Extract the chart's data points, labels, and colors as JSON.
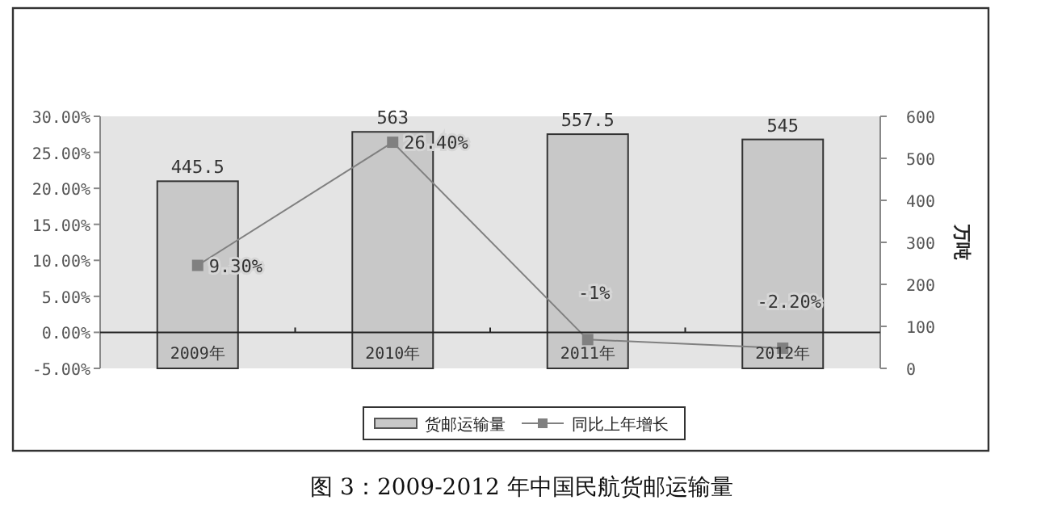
{
  "chart_data": {
    "type": "bar",
    "categories": [
      "2009年",
      "2010年",
      "2011年",
      "2012年"
    ],
    "series": [
      {
        "name": "货邮运输量",
        "axis": "y2",
        "color": "#c8c8c8",
        "values": [
          445.5,
          563,
          557.5,
          545
        ],
        "value_labels": [
          "445.5",
          "563",
          "557.5",
          "545"
        ]
      },
      {
        "name": "同比上年增长",
        "type": "line",
        "axis": "y",
        "color": "#808080",
        "values": [
          9.3,
          26.4,
          -1,
          -2.2
        ],
        "value_labels": [
          "9.30%",
          "26.40%",
          "-1%",
          "-2.20%"
        ]
      }
    ],
    "ylim": [
      -5,
      30
    ],
    "yticks": [
      {
        "value": -5,
        "label": "-5.00%"
      },
      {
        "value": 0,
        "label": "0.00%"
      },
      {
        "value": 5,
        "label": "5.00%"
      },
      {
        "value": 10,
        "label": "10.00%"
      },
      {
        "value": 15,
        "label": "15.00%"
      },
      {
        "value": 20,
        "label": "20.00%"
      },
      {
        "value": 25,
        "label": "25.00%"
      },
      {
        "value": 30,
        "label": "30.00%"
      }
    ],
    "y2lim": [
      0,
      600
    ],
    "y2ticks": [
      0,
      100,
      200,
      300,
      400,
      500,
      600
    ],
    "y2label": "万吨",
    "marker": "square",
    "legend": "bottom",
    "annotations": [
      "图 3：2009-2012 年中国民航货邮运输量"
    ]
  }
}
